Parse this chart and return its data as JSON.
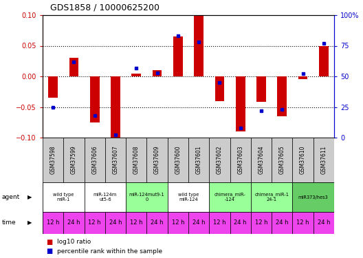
{
  "title": "GDS1858 / 10000625200",
  "samples": [
    "GSM37598",
    "GSM37599",
    "GSM37606",
    "GSM37607",
    "GSM37608",
    "GSM37609",
    "GSM37600",
    "GSM37601",
    "GSM37602",
    "GSM37603",
    "GSM37604",
    "GSM37605",
    "GSM37610",
    "GSM37611"
  ],
  "log10_ratio": [
    -0.035,
    0.03,
    -0.075,
    -0.1,
    0.005,
    0.01,
    0.065,
    0.1,
    -0.04,
    -0.09,
    -0.042,
    -0.065,
    -0.005,
    0.05
  ],
  "percentile_rank": [
    25,
    62,
    18,
    2,
    57,
    53,
    83,
    78,
    45,
    8,
    22,
    23,
    52,
    77
  ],
  "ylim_left": [
    -0.1,
    0.1
  ],
  "ylim_right": [
    0,
    100
  ],
  "yticks_left": [
    -0.1,
    -0.05,
    0.0,
    0.05,
    0.1
  ],
  "yticks_right": [
    0,
    25,
    50,
    75,
    100
  ],
  "ytick_right_labels": [
    "0",
    "25",
    "50",
    "75",
    "100%"
  ],
  "bar_color": "#cc0000",
  "dot_color": "#0000cc",
  "agent_groups": [
    {
      "label": "wild type\nmiR-1",
      "cols": [
        0,
        1
      ],
      "color": "#ffffff"
    },
    {
      "label": "miR-124m\nut5-6",
      "cols": [
        2,
        3
      ],
      "color": "#ffffff"
    },
    {
      "label": "miR-124mut9-1\n0",
      "cols": [
        4,
        5
      ],
      "color": "#99ff99"
    },
    {
      "label": "wild type\nmiR-124",
      "cols": [
        6,
        7
      ],
      "color": "#ffffff"
    },
    {
      "label": "chimera_miR-\n-124",
      "cols": [
        8,
        9
      ],
      "color": "#99ff99"
    },
    {
      "label": "chimera_miR-1\n24-1",
      "cols": [
        10,
        11
      ],
      "color": "#99ff99"
    },
    {
      "label": "miR373/hes3",
      "cols": [
        12,
        13
      ],
      "color": "#66cc66"
    }
  ],
  "time_labels": [
    "12 h",
    "24 h",
    "12 h",
    "24 h",
    "12 h",
    "24 h",
    "12 h",
    "24 h",
    "12 h",
    "24 h",
    "12 h",
    "24 h",
    "12 h",
    "24 h"
  ],
  "time_color": "#ee44ee",
  "gsm_bg_color": "#cccccc",
  "left_label_color": "#cc0000",
  "right_label_color": "#0000cc"
}
